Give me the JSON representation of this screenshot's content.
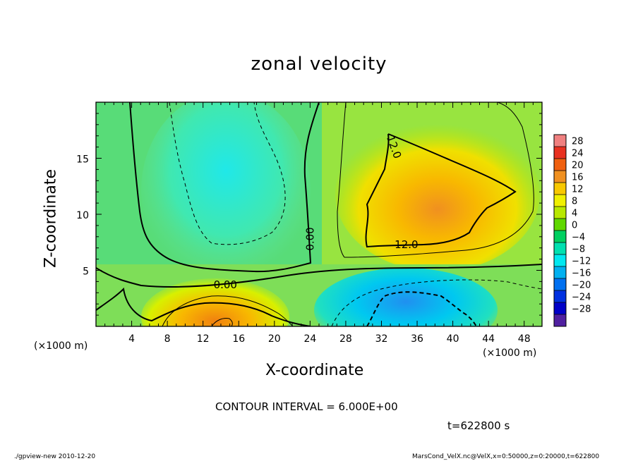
{
  "chart_data": {
    "type": "heatmap",
    "title": "zonal velocity",
    "xlabel": "X-coordinate",
    "ylabel": "Z-coordinate",
    "x_unit_label": "(×1000 m)",
    "xlim": [
      0,
      50
    ],
    "ylim": [
      0,
      20
    ],
    "xticks": [
      4,
      8,
      12,
      16,
      20,
      24,
      28,
      32,
      36,
      40,
      44,
      48
    ],
    "yticks": [
      5,
      10,
      15
    ],
    "colorbar_ticks": [
      28,
      24,
      20,
      16,
      12,
      8,
      4,
      0,
      -4,
      -8,
      -12,
      -16,
      -20,
      -24,
      -28
    ],
    "colorbar_colors": [
      "#f08080",
      "#e83020",
      "#f06010",
      "#f09020",
      "#f8c800",
      "#f0f000",
      "#b8e800",
      "#60d800",
      "#00d060",
      "#00e0b0",
      "#00e8f0",
      "#00b0f0",
      "#0070f0",
      "#0030e0",
      "#0000c8",
      "#5020a0"
    ],
    "contour_labels": [
      {
        "text": "0.00",
        "x": 14.5,
        "y": 3.7
      },
      {
        "text": "0.00",
        "x": 24.0,
        "y": 7.8
      },
      {
        "text": "12.0",
        "x": 34.8,
        "y": 7.3
      },
      {
        "text": "12.0",
        "x": 33.4,
        "y": 16.0
      }
    ],
    "contour_interval_text": "CONTOUR INTERVAL = 6.000E+00",
    "time_text": "t=622800 s"
  },
  "footer": {
    "left": "./gpview-new  2010-12-20",
    "right": "MarsCond_VelX.nc@VelX,x=0:50000,z=0:20000,t=622800"
  }
}
